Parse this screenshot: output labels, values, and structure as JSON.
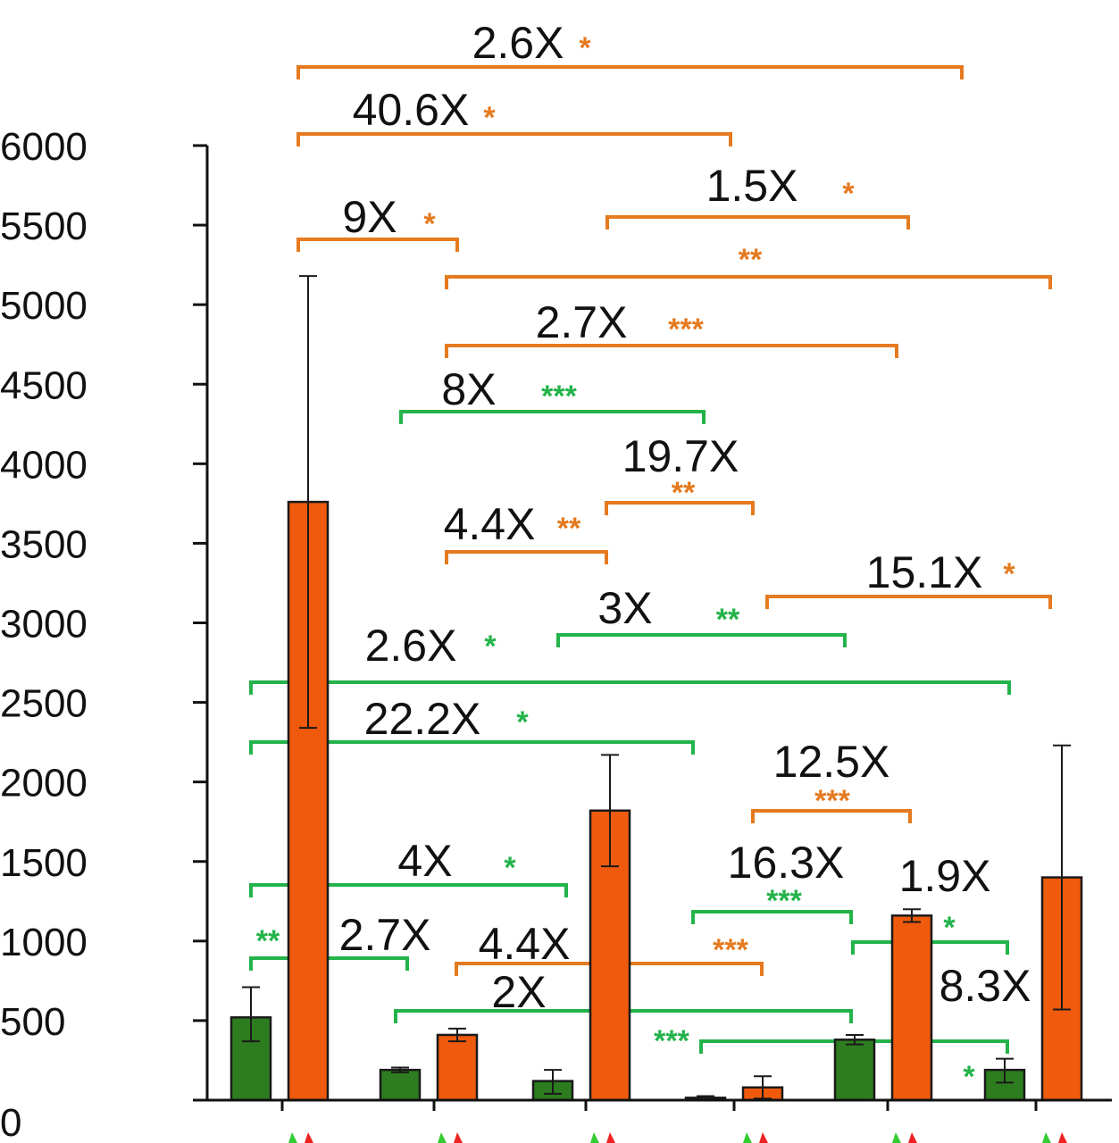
{
  "colors": {
    "green": "#2d7d20",
    "orange": "#ef5a0c",
    "green_bracket": "#23b34a",
    "orange_bracket": "#e57a1f",
    "axis": "#111111",
    "marker_green": "#33cc33",
    "marker_red": "#ee2222"
  },
  "chart_data": {
    "type": "bar",
    "ylim": [
      0,
      6000
    ],
    "yticks": [
      0,
      500,
      1000,
      1500,
      2000,
      2500,
      3000,
      3500,
      4000,
      4500,
      5000,
      5500,
      6000
    ],
    "grid": false,
    "legend": "none",
    "bars": [
      {
        "group": 1,
        "color": "green",
        "value": 520,
        "err_low": 370,
        "err_high": 710
      },
      {
        "group": 1,
        "color": "orange",
        "value": 3760,
        "err_low": 2340,
        "err_high": 5180
      },
      {
        "group": 2,
        "color": "green",
        "value": 190,
        "err_low": 175,
        "err_high": 205
      },
      {
        "group": 2,
        "color": "orange",
        "value": 410,
        "err_low": 370,
        "err_high": 450
      },
      {
        "group": 3,
        "color": "green",
        "value": 120,
        "err_low": 40,
        "err_high": 190
      },
      {
        "group": 3,
        "color": "orange",
        "value": 1820,
        "err_low": 1470,
        "err_high": 2170
      },
      {
        "group": 4,
        "color": "green",
        "value": 15,
        "err_low": 5,
        "err_high": 25
      },
      {
        "group": 4,
        "color": "orange",
        "value": 80,
        "err_low": 10,
        "err_high": 150
      },
      {
        "group": 5,
        "color": "green",
        "value": 380,
        "err_low": 350,
        "err_high": 410
      },
      {
        "group": 5,
        "color": "orange",
        "value": 1160,
        "err_low": 1120,
        "err_high": 1200
      },
      {
        "group": 6,
        "color": "green",
        "value": 190,
        "err_low": 110,
        "err_high": 260
      },
      {
        "group": 6,
        "color": "orange",
        "value": 1400,
        "err_low": 570,
        "err_high": 2230
      }
    ],
    "comparisons": [
      {
        "fold": "2.6X",
        "stars": "*",
        "color": "orange",
        "from": 1,
        "to": 7
      },
      {
        "fold": "40.6X",
        "stars": "*",
        "color": "orange",
        "from": 1,
        "to": 7
      },
      {
        "fold": "1.5X",
        "stars": "*",
        "color": "orange",
        "from": 5,
        "to": 9
      },
      {
        "fold": "9X",
        "stars": "*",
        "color": "orange",
        "from": 1,
        "to": 3
      },
      {
        "fold": "",
        "stars": "**",
        "color": "orange",
        "from": 3,
        "to": 11
      },
      {
        "fold": "2.7X",
        "stars": "***",
        "color": "orange",
        "from": 3,
        "to": 9
      },
      {
        "fold": "8X",
        "stars": "***",
        "color": "green",
        "from": 2,
        "to": 6
      },
      {
        "fold": "19.7X",
        "stars": "**",
        "color": "orange",
        "from": 5,
        "to": 7
      },
      {
        "fold": "4.4X",
        "stars": "**",
        "color": "orange",
        "from": 3,
        "to": 5
      },
      {
        "fold": "15.1X",
        "stars": "*",
        "color": "orange",
        "from": 7,
        "to": 11
      },
      {
        "fold": "3X",
        "stars": "**",
        "color": "green",
        "from": 4,
        "to": 8
      },
      {
        "fold": "2.6X",
        "stars": "*",
        "color": "green",
        "from": 0,
        "to": 10
      },
      {
        "fold": "22.2X",
        "stars": "*",
        "color": "green",
        "from": 0,
        "to": 6
      },
      {
        "fold": "12.5X",
        "stars": "***",
        "color": "orange",
        "from": 7,
        "to": 9
      },
      {
        "fold": "4X",
        "stars": "*",
        "color": "green",
        "from": 0,
        "to": 4
      },
      {
        "fold": "16.3X",
        "stars": "***",
        "color": "green",
        "from": 6,
        "to": 8
      },
      {
        "fold": "1.9X",
        "stars": "*",
        "color": "green",
        "from": 8,
        "to": 10
      },
      {
        "fold": "2.7X",
        "stars": "**",
        "color": "green",
        "from": 0,
        "to": 2
      },
      {
        "fold": "4.4X",
        "stars": "***",
        "color": "orange",
        "from": 3,
        "to": 7
      },
      {
        "fold": "2X",
        "stars": "",
        "color": "green",
        "from": 2,
        "to": 8
      },
      {
        "fold": "8.3X",
        "stars": "***",
        "color": "green",
        "from": 6,
        "to": 10
      },
      {
        "fold": "",
        "stars": "*",
        "color": "green",
        "from": 6,
        "to": 10
      }
    ]
  }
}
